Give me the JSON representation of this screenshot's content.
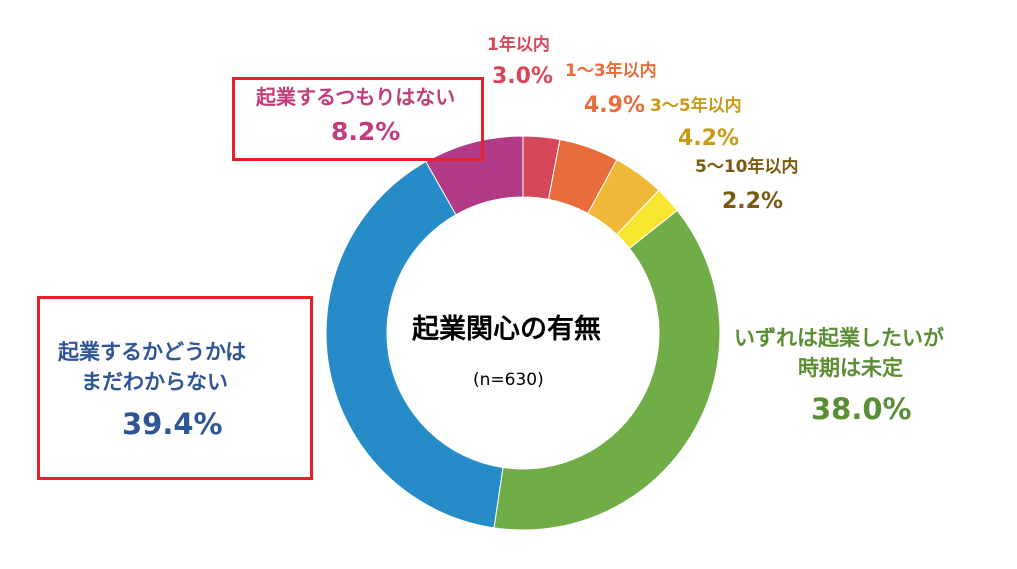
{
  "chart_data": {
    "type": "donut",
    "title": "起業関心の有無",
    "subtitle": "(n=630)",
    "slices": [
      {
        "label": "1年以内",
        "value": 3.0,
        "display": "3.0%",
        "color": "#d7475a"
      },
      {
        "label": "1〜3年以内",
        "value": 4.9,
        "display": "4.9%",
        "color": "#e86d3b"
      },
      {
        "label": "3〜5年以内",
        "value": 4.2,
        "display": "4.2%",
        "color": "#f0b838"
      },
      {
        "label": "5〜10年以内",
        "value": 2.2,
        "display": "2.2%",
        "color": "#f9e630"
      },
      {
        "label_lines": [
          "いずれは起業したいが",
          "時期は未定"
        ],
        "value": 38.0,
        "display": "38.0%",
        "color": "#71ad47"
      },
      {
        "label_lines": [
          "起業するかどうかは",
          "まだわからない"
        ],
        "value": 39.4,
        "display": "39.4%",
        "color": "#258cc8"
      },
      {
        "label": "起業するつもりはない",
        "value": 8.2,
        "display": "8.2%",
        "color": "#b33a87"
      }
    ],
    "label_colors": {
      "s0": "#d7475a",
      "s1": "#e86d3b",
      "s2": "#c99a14",
      "s3": "#7a5a10",
      "s4": "#5b8e34",
      "s5": "#2f5597",
      "s6": "#c23b7a"
    },
    "highlight_color": "#e8202a"
  }
}
